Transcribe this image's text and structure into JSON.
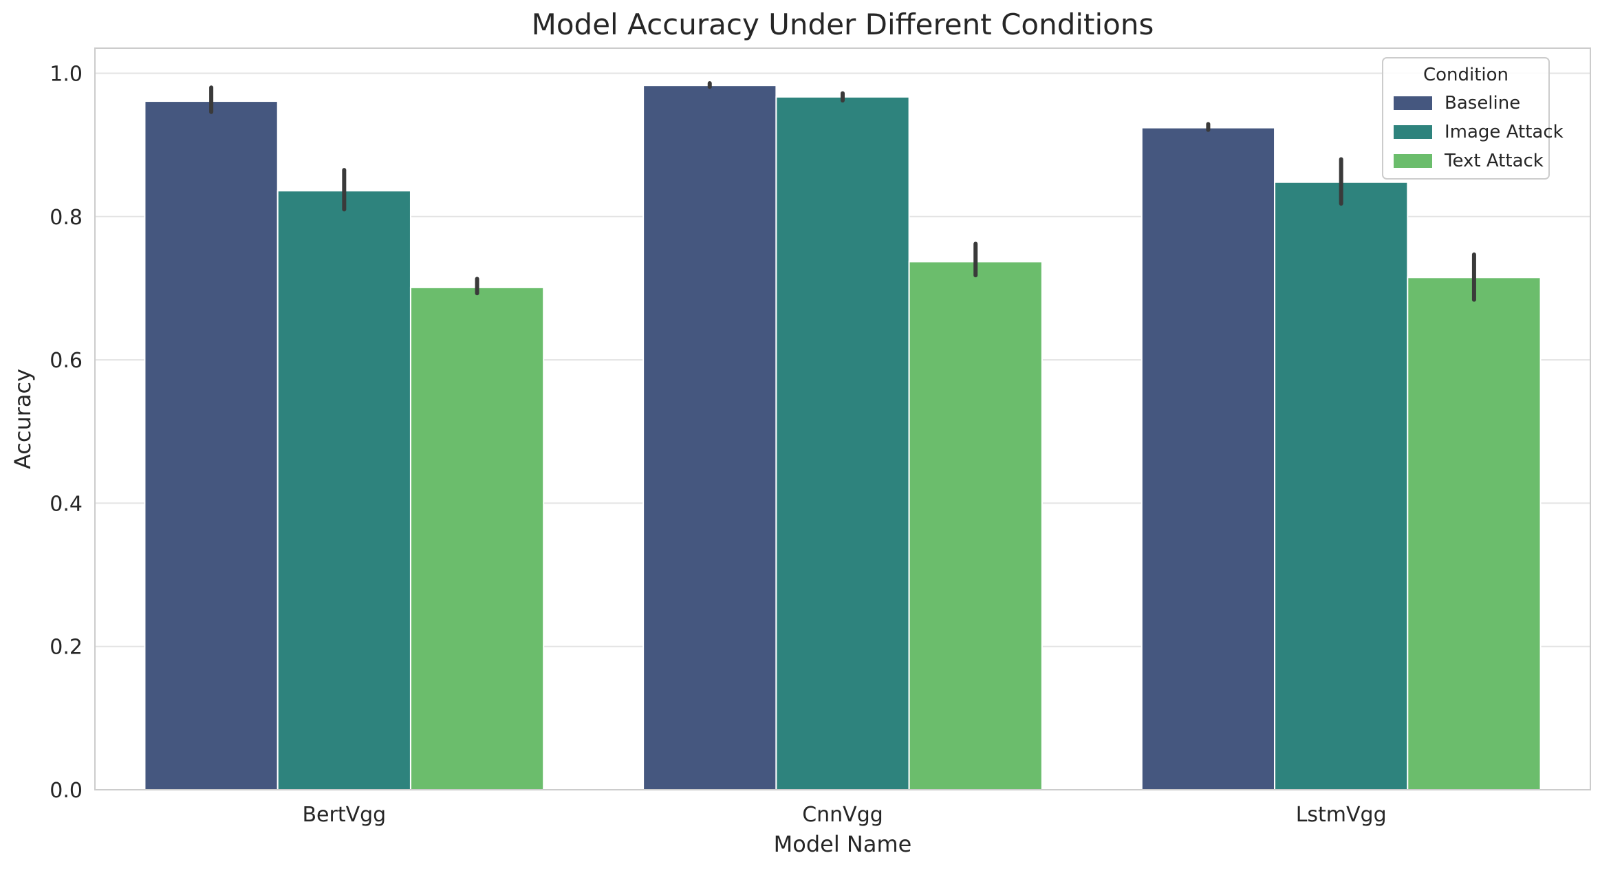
{
  "chart_data": {
    "type": "bar",
    "title": "Model Accuracy Under Different Conditions",
    "xlabel": "Model Name",
    "ylabel": "Accuracy",
    "categories": [
      "BertVgg",
      "CnnVgg",
      "LstmVgg"
    ],
    "ylim": [
      0,
      1.035
    ],
    "yticks": [
      0.0,
      0.2,
      0.4,
      0.6,
      0.8,
      1.0
    ],
    "ytick_labels": [
      "0.0",
      "0.2",
      "0.4",
      "0.6",
      "0.8",
      "1.0"
    ],
    "grid": "horizontal",
    "legend": {
      "title": "Condition",
      "placement": "top-right"
    },
    "series": [
      {
        "name": "Baseline",
        "color": "#45577f",
        "values": [
          0.961,
          0.983,
          0.924
        ],
        "error_low": [
          0.946,
          0.981,
          0.921
        ],
        "error_high": [
          0.98,
          0.986,
          0.929
        ]
      },
      {
        "name": "Image Attack",
        "color": "#2e837d",
        "values": [
          0.836,
          0.967,
          0.848
        ],
        "error_low": [
          0.81,
          0.962,
          0.818
        ],
        "error_high": [
          0.865,
          0.972,
          0.88
        ]
      },
      {
        "name": "Text Attack",
        "color": "#6bbd6c",
        "values": [
          0.701,
          0.737,
          0.715
        ],
        "error_low": [
          0.693,
          0.718,
          0.684
        ],
        "error_high": [
          0.713,
          0.762,
          0.747
        ]
      }
    ]
  }
}
